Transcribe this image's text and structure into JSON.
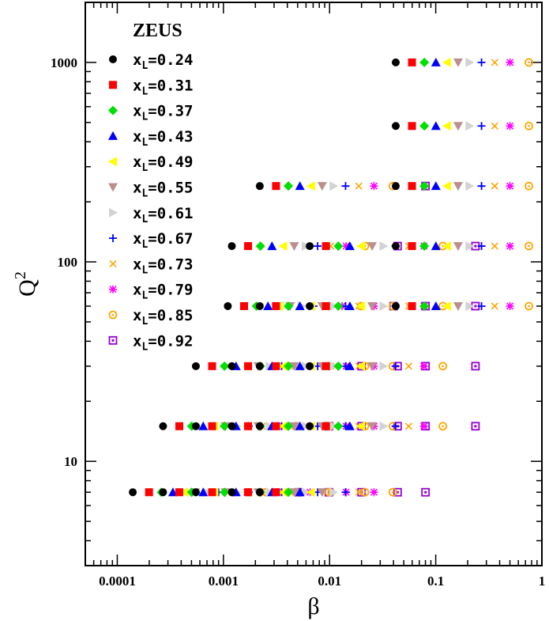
{
  "chart_data": {
    "type": "scatter",
    "title": "",
    "xlabel": "β",
    "ylabel": "Q",
    "ylabel_superscript": "2",
    "x_scale": "log",
    "y_scale": "log",
    "xlim": [
      5e-05,
      1
    ],
    "ylim": [
      3,
      2000
    ],
    "x_ticks": [
      {
        "value": 0.0001,
        "label": "0.0001"
      },
      {
        "value": 0.001,
        "label": "0.001"
      },
      {
        "value": 0.01,
        "label": "0.01"
      },
      {
        "value": 0.1,
        "label": "0.1"
      },
      {
        "value": 1,
        "label": "1"
      }
    ],
    "y_ticks": [
      {
        "value": 10,
        "label": "10"
      },
      {
        "value": 100,
        "label": "100"
      },
      {
        "value": 1000,
        "label": "1000"
      }
    ],
    "legend": {
      "title": "ZEUS",
      "placement": "top-left",
      "prefix": "x",
      "subscript": "L"
    },
    "series": [
      {
        "name": "0.24",
        "xL": 0.24,
        "marker": "circle",
        "color": "#000000"
      },
      {
        "name": "0.31",
        "xL": 0.31,
        "marker": "square",
        "color": "#ff0000"
      },
      {
        "name": "0.37",
        "xL": 0.37,
        "marker": "diamond",
        "color": "#00e000"
      },
      {
        "name": "0.43",
        "xL": 0.43,
        "marker": "triangle-up",
        "color": "#0000ff"
      },
      {
        "name": "0.49",
        "xL": 0.49,
        "marker": "triangle-left",
        "color": "#ffff00"
      },
      {
        "name": "0.55",
        "xL": 0.55,
        "marker": "triangle-down",
        "color": "#bc8f8f"
      },
      {
        "name": "0.61",
        "xL": 0.61,
        "marker": "triangle-right",
        "color": "#d3d3d3"
      },
      {
        "name": "0.67",
        "xL": 0.67,
        "marker": "plus",
        "color": "#0000ff"
      },
      {
        "name": "0.73",
        "xL": 0.73,
        "marker": "cross",
        "color": "#ffa500"
      },
      {
        "name": "0.79",
        "xL": 0.79,
        "marker": "star",
        "color": "#ff00ff"
      },
      {
        "name": "0.85",
        "xL": 0.85,
        "marker": "circle-open",
        "color": "#ffa500"
      },
      {
        "name": "0.92",
        "xL": 0.92,
        "marker": "square-open",
        "color": "#9400d3"
      }
    ],
    "rows": [
      {
        "Q2": 1000,
        "beta_at_xL024": [
          0.042
        ]
      },
      {
        "Q2": 480,
        "beta_at_xL024": [
          0.042
        ]
      },
      {
        "Q2": 240,
        "beta_at_xL024": [
          0.0022,
          0.042
        ]
      },
      {
        "Q2": 120,
        "beta_at_xL024": [
          0.0012,
          0.0065,
          0.042
        ]
      },
      {
        "Q2": 60,
        "beta_at_xL024": [
          0.0011,
          0.0022,
          0.0065,
          0.042
        ]
      },
      {
        "Q2": 30,
        "beta_at_xL024": [
          0.00055,
          0.0012,
          0.0022,
          0.0065
        ]
      },
      {
        "Q2": 15,
        "beta_at_xL024": [
          0.00027,
          0.00055,
          0.0012,
          0.0022,
          0.0065
        ]
      },
      {
        "Q2": 7,
        "beta_at_xL024": [
          0.00014,
          0.00027,
          0.00055,
          0.0012,
          0.0022
        ]
      }
    ]
  }
}
